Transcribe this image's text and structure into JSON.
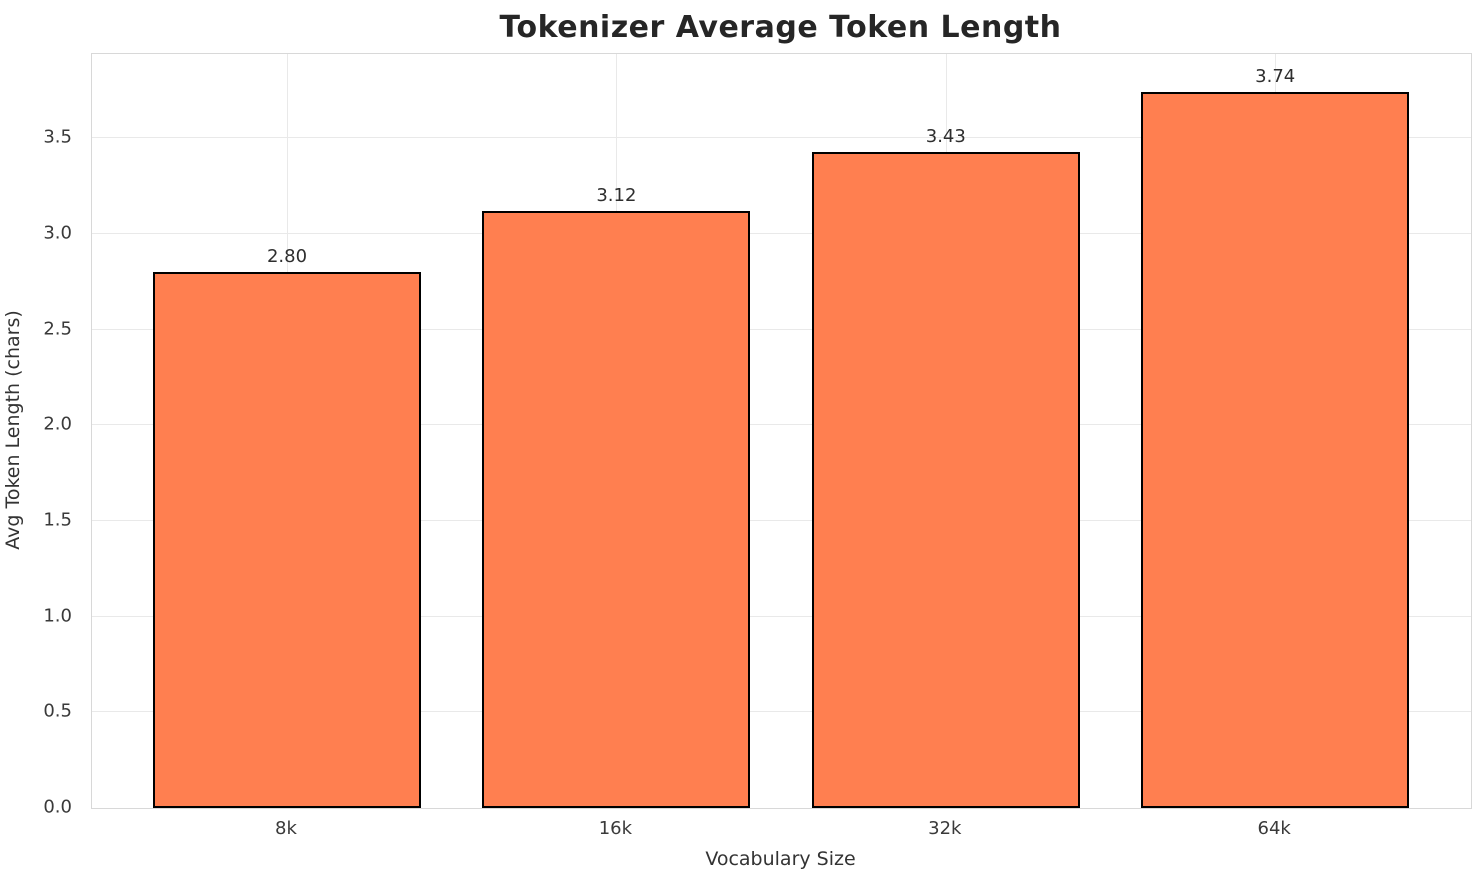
{
  "chart_data": {
    "type": "bar",
    "title": "Tokenizer Average Token Length",
    "xlabel": "Vocabulary Size",
    "ylabel": "Avg Token Length (chars)",
    "categories": [
      "8k",
      "16k",
      "32k",
      "64k"
    ],
    "values": [
      2.8,
      3.12,
      3.43,
      3.74
    ],
    "value_labels": [
      "2.80",
      "3.12",
      "3.43",
      "3.74"
    ],
    "yticks": [
      0.0,
      0.5,
      1.0,
      1.5,
      2.0,
      2.5,
      3.0,
      3.5
    ],
    "ytick_labels": [
      "0.0",
      "0.5",
      "1.0",
      "1.5",
      "2.0",
      "2.5",
      "3.0",
      "3.5"
    ],
    "ylim": [
      0,
      3.94
    ],
    "grid": true,
    "legend_position": "none",
    "colors": {
      "bar_fill": "#FF7F50",
      "bar_edge": "#000000",
      "grid_line": "#e9e9e9",
      "spine": "#d8d8d8",
      "tick_text": "#3a3a3a",
      "title_text": "#262626",
      "axis_label_text": "#333333",
      "value_label_text": "#2e2e2e"
    }
  }
}
